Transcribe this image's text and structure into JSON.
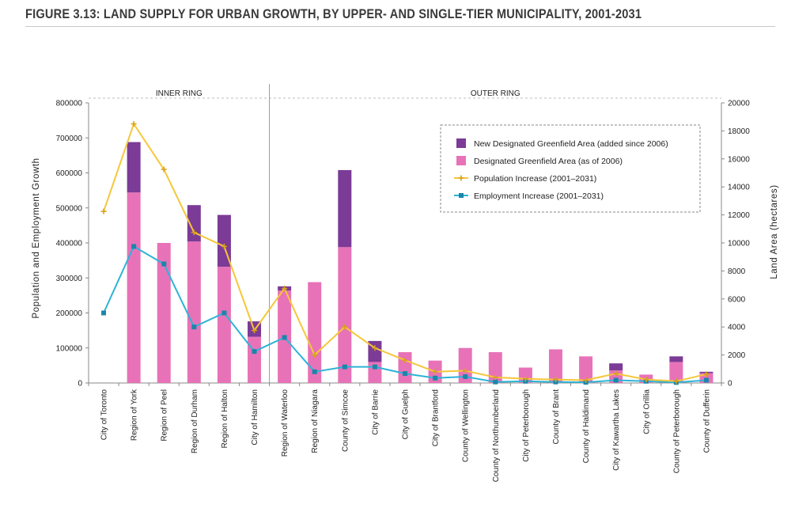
{
  "title": "FIGURE 3.13: LAND SUPPLY FOR URBAN GROWTH, BY UPPER- AND SINGLE-TIER MUNICIPALITY, 2001-2031",
  "colors": {
    "new_greenfield": "#7b3b96",
    "designated_greenfield": "#e872b8",
    "population": "#f5c73a",
    "population_marker": "#d9a21a",
    "employment": "#2fb3d6",
    "employment_marker": "#1a86aa"
  },
  "chart_data": {
    "type": "bar",
    "ylabel": "Population and Employment Growth",
    "y2label": "Land Area  (hectares)",
    "ylim": [
      0,
      800000
    ],
    "y2lim": [
      0,
      20000
    ],
    "yticks": [
      "0",
      "100000",
      "200000",
      "300000",
      "400000",
      "500000",
      "600000",
      "700000",
      "800000"
    ],
    "y2ticks": [
      "0",
      "2000",
      "4000",
      "6000",
      "8000",
      "10000",
      "12000",
      "14000",
      "16000",
      "18000",
      "20000"
    ],
    "groups": [
      {
        "label": "INNER RING",
        "count": 6
      },
      {
        "label": "OUTER RING",
        "count": 15
      }
    ],
    "categories": [
      "City of Toronto",
      "Region of York",
      "Region of Peel",
      "Region of Durham",
      "Region of Halton",
      "City of Hamilton",
      "Region of Waterloo",
      "Region of Niagara",
      "County of Simcoe",
      "City of Barrie",
      "City of Guelph",
      "City of Brantford",
      "County of Wellington",
      "County of Northumberland",
      "City of Peterborough",
      "County of Brant",
      "County of Haldimand",
      "City of Kawartha Lakes",
      "City of Orillia",
      "County of Peterborough",
      "County of Dufferin"
    ],
    "series": [
      {
        "name": "Designated Greenfield Area (as of 2006)",
        "kind": "bar",
        "axis": "right",
        "values": [
          0,
          13600,
          10000,
          10100,
          8300,
          3300,
          6600,
          7200,
          9700,
          1500,
          2200,
          1600,
          2500,
          2200,
          1100,
          2400,
          1900,
          900,
          600,
          1500,
          700
        ]
      },
      {
        "name": "New Designated Greenfield Area (added since 2006)",
        "kind": "bar",
        "axis": "right",
        "values": [
          0,
          3600,
          0,
          2600,
          3700,
          1100,
          300,
          0,
          5500,
          1500,
          0,
          0,
          0,
          0,
          0,
          0,
          0,
          500,
          0,
          400,
          100
        ]
      },
      {
        "name": "Population Increase (2001–2031)",
        "kind": "line",
        "axis": "left",
        "values": [
          490000,
          740000,
          610000,
          430000,
          390000,
          150000,
          270000,
          80000,
          160000,
          100000,
          65000,
          32000,
          35000,
          16000,
          12000,
          10000,
          8000,
          27000,
          10000,
          5000,
          25000
        ]
      },
      {
        "name": "Employment Increase (2001–2031)",
        "kind": "line",
        "axis": "left",
        "values": [
          200000,
          390000,
          340000,
          160000,
          200000,
          90000,
          130000,
          32000,
          46000,
          46000,
          27000,
          14000,
          18000,
          3000,
          5000,
          3000,
          2000,
          8000,
          5000,
          1500,
          8000
        ]
      }
    ],
    "legend": {
      "position": "top-right",
      "entries": [
        {
          "label": "New Designated Greenfield Area (added since 2006)",
          "color_key": "new_greenfield",
          "style": "box"
        },
        {
          "label": "Designated Greenfield Area (as of 2006)",
          "color_key": "designated_greenfield",
          "style": "box"
        },
        {
          "label": "Population Increase (2001–2031)",
          "color_key": "population",
          "style": "line"
        },
        {
          "label": "Employment Increase (2001–2031)",
          "color_key": "employment",
          "style": "line"
        }
      ]
    }
  }
}
